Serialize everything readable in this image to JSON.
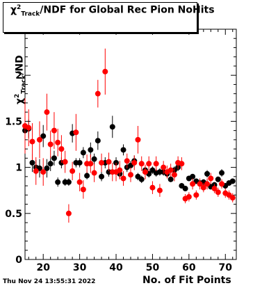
{
  "title": {
    "chi": "χ",
    "sup": "2",
    "sub": "Track",
    "rest": "/NDF for Global Rec Pion NoHits"
  },
  "footer": {
    "date": "Thu Nov 24 13:55:31 2022"
  },
  "axes": {
    "xlabel": "No. of Fit Points",
    "ylabel_chi": "χ",
    "ylabel_sup": "2",
    "ylabel_sub": "Track",
    "ylabel_rest": "/ND"
  },
  "colors": {
    "series_black": "#000000",
    "series_red": "#ff0000",
    "frame": "#000000"
  },
  "chart_data": {
    "type": "scatter",
    "title": "χ2Track/NDF for Global Rec Pion NoHits",
    "xlabel": "No. of Fit Points",
    "ylabel": "χ2Track/ND",
    "xlim": [
      15,
      73
    ],
    "ylim": [
      0,
      2.5
    ],
    "xticks": [
      20,
      30,
      40,
      50,
      60,
      70
    ],
    "yticks": [
      0,
      0.5,
      1,
      1.5,
      2
    ],
    "ytick_labels": [
      "0",
      "0.5",
      "1",
      "1.5",
      "2"
    ],
    "grid": false,
    "legend": "none",
    "series": [
      {
        "color": "#000000",
        "points": [
          {
            "x": 15,
            "y": 1.4,
            "e": 0.12
          },
          {
            "x": 16,
            "y": 1.42,
            "e": 0.1
          },
          {
            "x": 17,
            "y": 1.05,
            "e": 0.1
          },
          {
            "x": 18,
            "y": 1.0,
            "e": 0.08
          },
          {
            "x": 19,
            "y": 0.99,
            "e": 0.1
          },
          {
            "x": 20,
            "y": 1.34,
            "e": 0.12
          },
          {
            "x": 21,
            "y": 0.99,
            "e": 0.1
          },
          {
            "x": 22,
            "y": 1.04,
            "e": 0.08
          },
          {
            "x": 23,
            "y": 1.1,
            "e": 0.08
          },
          {
            "x": 24,
            "y": 0.84,
            "e": 0.05
          },
          {
            "x": 25,
            "y": 1.05,
            "e": 0.06
          },
          {
            "x": 26,
            "y": 0.84,
            "e": 0.04
          },
          {
            "x": 27,
            "y": 0.84,
            "e": 0.04
          },
          {
            "x": 28,
            "y": 1.37,
            "e": 0.1
          },
          {
            "x": 29,
            "y": 1.05,
            "e": 0.05
          },
          {
            "x": 30,
            "y": 1.05,
            "e": 0.05
          },
          {
            "x": 31,
            "y": 1.16,
            "e": 0.06
          },
          {
            "x": 32,
            "y": 0.91,
            "e": 0.04
          },
          {
            "x": 33,
            "y": 1.19,
            "e": 0.08
          },
          {
            "x": 34,
            "y": 1.09,
            "e": 0.06
          },
          {
            "x": 35,
            "y": 1.29,
            "e": 0.1
          },
          {
            "x": 36,
            "y": 0.9,
            "e": 0.05
          },
          {
            "x": 37,
            "y": 1.05,
            "e": 0.06
          },
          {
            "x": 38,
            "y": 0.95,
            "e": 0.05
          },
          {
            "x": 39,
            "y": 1.44,
            "e": 0.12
          },
          {
            "x": 40,
            "y": 1.05,
            "e": 0.06
          },
          {
            "x": 41,
            "y": 0.93,
            "e": 0.05
          },
          {
            "x": 42,
            "y": 1.19,
            "e": 0.06
          },
          {
            "x": 43,
            "y": 1.0,
            "e": 0.05
          },
          {
            "x": 44,
            "y": 1.02,
            "e": 0.05
          },
          {
            "x": 45,
            "y": 1.07,
            "e": 0.06
          },
          {
            "x": 46,
            "y": 0.9,
            "e": 0.04
          },
          {
            "x": 47,
            "y": 0.87,
            "e": 0.04
          },
          {
            "x": 48,
            "y": 0.97,
            "e": 0.04
          },
          {
            "x": 49,
            "y": 0.93,
            "e": 0.04
          },
          {
            "x": 50,
            "y": 0.97,
            "e": 0.04
          },
          {
            "x": 51,
            "y": 0.94,
            "e": 0.04
          },
          {
            "x": 52,
            "y": 0.95,
            "e": 0.04
          },
          {
            "x": 53,
            "y": 0.95,
            "e": 0.04
          },
          {
            "x": 54,
            "y": 0.93,
            "e": 0.04
          },
          {
            "x": 55,
            "y": 0.87,
            "e": 0.03
          },
          {
            "x": 56,
            "y": 0.97,
            "e": 0.04
          },
          {
            "x": 57,
            "y": 1.0,
            "e": 0.04
          },
          {
            "x": 58,
            "y": 0.8,
            "e": 0.03
          },
          {
            "x": 59,
            "y": 0.77,
            "e": 0.03
          },
          {
            "x": 60,
            "y": 0.88,
            "e": 0.03
          },
          {
            "x": 61,
            "y": 0.9,
            "e": 0.03
          },
          {
            "x": 62,
            "y": 0.85,
            "e": 0.03
          },
          {
            "x": 63,
            "y": 0.83,
            "e": 0.03
          },
          {
            "x": 64,
            "y": 0.84,
            "e": 0.03
          },
          {
            "x": 65,
            "y": 0.93,
            "e": 0.04
          },
          {
            "x": 66,
            "y": 0.79,
            "e": 0.03
          },
          {
            "x": 67,
            "y": 0.81,
            "e": 0.03
          },
          {
            "x": 68,
            "y": 0.87,
            "e": 0.03
          },
          {
            "x": 69,
            "y": 0.94,
            "e": 0.04
          },
          {
            "x": 70,
            "y": 0.8,
            "e": 0.03
          },
          {
            "x": 71,
            "y": 0.83,
            "e": 0.03
          },
          {
            "x": 72,
            "y": 0.85,
            "e": 0.03
          }
        ]
      },
      {
        "color": "#ff0000",
        "points": [
          {
            "x": 15,
            "y": 1.45,
            "e": 0.3
          },
          {
            "x": 16,
            "y": 1.43,
            "e": 0.2
          },
          {
            "x": 17,
            "y": 1.28,
            "e": 0.2
          },
          {
            "x": 18,
            "y": 0.96,
            "e": 0.15
          },
          {
            "x": 19,
            "y": 1.3,
            "e": 0.2
          },
          {
            "x": 20,
            "y": 0.95,
            "e": 0.15
          },
          {
            "x": 21,
            "y": 1.6,
            "e": 0.2
          },
          {
            "x": 22,
            "y": 1.25,
            "e": 0.15
          },
          {
            "x": 23,
            "y": 1.4,
            "e": 0.2
          },
          {
            "x": 24,
            "y": 1.27,
            "e": 0.15
          },
          {
            "x": 25,
            "y": 1.2,
            "e": 0.15
          },
          {
            "x": 26,
            "y": 1.06,
            "e": 0.12
          },
          {
            "x": 27,
            "y": 0.5,
            "e": 0.1
          },
          {
            "x": 28,
            "y": 0.96,
            "e": 0.1
          },
          {
            "x": 29,
            "y": 1.38,
            "e": 0.2
          },
          {
            "x": 30,
            "y": 0.84,
            "e": 0.1
          },
          {
            "x": 31,
            "y": 0.76,
            "e": 0.1
          },
          {
            "x": 32,
            "y": 1.04,
            "e": 0.1
          },
          {
            "x": 33,
            "y": 1.04,
            "e": 0.1
          },
          {
            "x": 34,
            "y": 0.94,
            "e": 0.1
          },
          {
            "x": 35,
            "y": 1.8,
            "e": 0.15
          },
          {
            "x": 36,
            "y": 1.05,
            "e": 0.1
          },
          {
            "x": 37,
            "y": 2.04,
            "e": 0.25
          },
          {
            "x": 38,
            "y": 1.06,
            "e": 0.1
          },
          {
            "x": 39,
            "y": 0.95,
            "e": 0.1
          },
          {
            "x": 40,
            "y": 0.95,
            "e": 0.1
          },
          {
            "x": 41,
            "y": 0.97,
            "e": 0.1
          },
          {
            "x": 42,
            "y": 0.88,
            "e": 0.08
          },
          {
            "x": 43,
            "y": 1.07,
            "e": 0.08
          },
          {
            "x": 44,
            "y": 0.92,
            "e": 0.08
          },
          {
            "x": 45,
            "y": 1.05,
            "e": 0.08
          },
          {
            "x": 46,
            "y": 1.3,
            "e": 0.15
          },
          {
            "x": 47,
            "y": 1.04,
            "e": 0.08
          },
          {
            "x": 48,
            "y": 0.95,
            "e": 0.08
          },
          {
            "x": 49,
            "y": 1.04,
            "e": 0.08
          },
          {
            "x": 50,
            "y": 0.78,
            "e": 0.07
          },
          {
            "x": 51,
            "y": 1.04,
            "e": 0.08
          },
          {
            "x": 52,
            "y": 0.75,
            "e": 0.07
          },
          {
            "x": 53,
            "y": 1.0,
            "e": 0.07
          },
          {
            "x": 54,
            "y": 0.95,
            "e": 0.07
          },
          {
            "x": 55,
            "y": 0.97,
            "e": 0.07
          },
          {
            "x": 56,
            "y": 0.92,
            "e": 0.07
          },
          {
            "x": 57,
            "y": 1.05,
            "e": 0.07
          },
          {
            "x": 58,
            "y": 1.04,
            "e": 0.07
          },
          {
            "x": 59,
            "y": 0.66,
            "e": 0.05
          },
          {
            "x": 60,
            "y": 0.68,
            "e": 0.05
          },
          {
            "x": 61,
            "y": 0.82,
            "e": 0.06
          },
          {
            "x": 62,
            "y": 0.7,
            "e": 0.05
          },
          {
            "x": 63,
            "y": 0.82,
            "e": 0.06
          },
          {
            "x": 64,
            "y": 0.78,
            "e": 0.05
          },
          {
            "x": 65,
            "y": 0.82,
            "e": 0.06
          },
          {
            "x": 66,
            "y": 0.88,
            "e": 0.06
          },
          {
            "x": 67,
            "y": 0.77,
            "e": 0.05
          },
          {
            "x": 68,
            "y": 0.73,
            "e": 0.05
          },
          {
            "x": 69,
            "y": 0.82,
            "e": 0.05
          },
          {
            "x": 70,
            "y": 0.72,
            "e": 0.05
          },
          {
            "x": 71,
            "y": 0.7,
            "e": 0.05
          },
          {
            "x": 72,
            "y": 0.67,
            "e": 0.05
          }
        ]
      }
    ]
  }
}
